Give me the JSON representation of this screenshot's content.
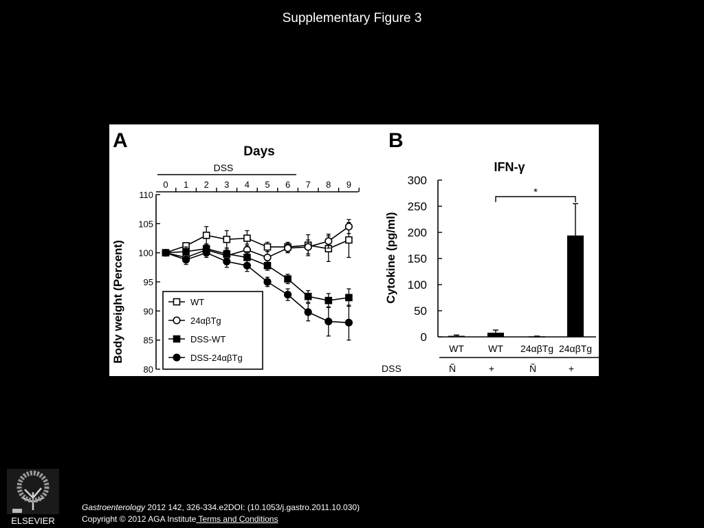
{
  "slide": {
    "title": "Supplementary Figure 3"
  },
  "footer": {
    "journal": "Gastroenterology",
    "citation": " 2012 142, 326-334.e2DOI: (10.1053/j.gastro.2011.10.030)",
    "copyright": "Copyright © 2012 AGA Institute",
    "terms_link": " Terms and Conditions"
  },
  "logo": {
    "text": "ELSEVIER"
  },
  "chart_data": [
    {
      "panel": "A",
      "type": "line",
      "title": "Days",
      "bracket_label": "DSS",
      "xlabel": "Days",
      "ylabel": "Body weight (Percent)",
      "x": [
        0,
        1,
        2,
        3,
        4,
        5,
        6,
        7,
        8,
        9
      ],
      "xticks": [
        "0",
        "1",
        "2",
        "3",
        "4",
        "5",
        "6",
        "7",
        "8",
        "9"
      ],
      "ylim": [
        80,
        110
      ],
      "yticks": [
        80,
        85,
        90,
        95,
        100,
        105,
        110
      ],
      "legend_position": "bottom-left",
      "series": [
        {
          "name": "WT",
          "marker": "open-square",
          "values": [
            100,
            101.2,
            103,
            102.3,
            102.5,
            101,
            101,
            101.3,
            100.7,
            102.2
          ],
          "errors": [
            0,
            0.5,
            1.5,
            1.5,
            1.3,
            0.8,
            0.8,
            1.8,
            2.2,
            3.0
          ]
        },
        {
          "name": "24αβTg",
          "marker": "open-circle",
          "values": [
            100,
            99.2,
            100.5,
            99.5,
            100.5,
            99.2,
            100.8,
            101,
            102,
            104.5
          ],
          "errors": [
            0,
            0.6,
            0.8,
            1.0,
            1.0,
            1.0,
            0.8,
            1.2,
            1.2,
            1.2
          ]
        },
        {
          "name": "DSS-WT",
          "marker": "filled-square",
          "values": [
            100,
            100.2,
            100.7,
            99.8,
            99.2,
            97.8,
            95.5,
            92.5,
            91.8,
            92.3
          ],
          "errors": [
            0,
            0.8,
            0.8,
            1.0,
            1.0,
            0.8,
            0.8,
            1.0,
            1.2,
            1.5
          ]
        },
        {
          "name": "DSS-24αβTg",
          "marker": "filled-circle",
          "values": [
            100,
            98.8,
            100,
            98.5,
            97.8,
            95,
            92.8,
            89.8,
            88.2,
            88
          ],
          "errors": [
            0,
            0.8,
            0.8,
            1.0,
            1.0,
            0.8,
            1.0,
            1.5,
            2.5,
            3.0
          ]
        }
      ]
    },
    {
      "panel": "B",
      "type": "bar",
      "title": "IFN-γ",
      "ylabel": "Cytokine (pg/ml)",
      "categories": [
        "WT",
        "WT",
        "24αβTg",
        "24αβTg"
      ],
      "dss_row_label": "DSS",
      "dss": [
        "Ñ",
        "+",
        "Ñ",
        "+"
      ],
      "values": [
        2,
        8,
        1,
        194
      ],
      "errors": [
        1.5,
        5,
        0.5,
        61
      ],
      "ylim": [
        0,
        300
      ],
      "yticks": [
        0,
        50,
        100,
        150,
        200,
        250,
        300
      ],
      "significance": {
        "label": "*",
        "from": 1,
        "to": 3
      }
    }
  ]
}
